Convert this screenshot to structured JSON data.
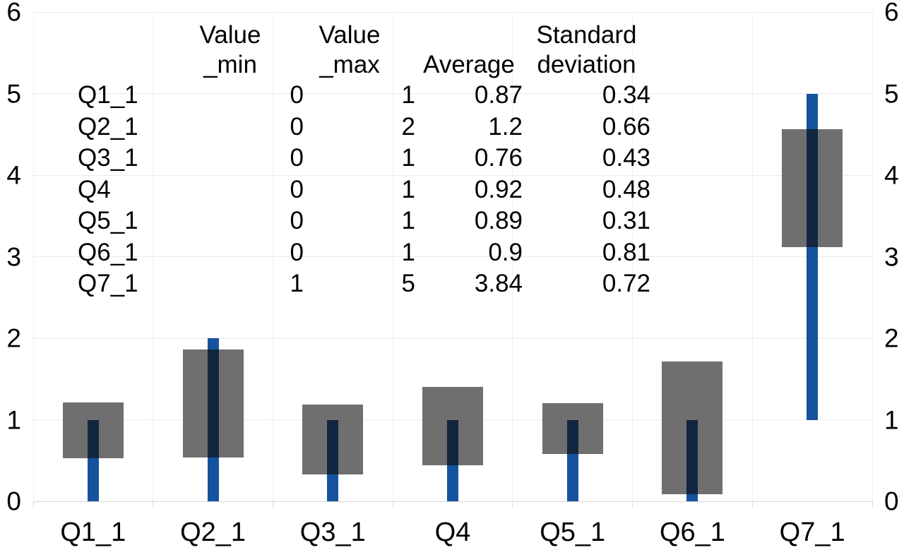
{
  "chart_data": {
    "type": "bar",
    "subtype": "min-max range bars with average±standard-deviation band bars",
    "title": "",
    "xlabel": "",
    "ylabel": "",
    "categories": [
      "Q1_1",
      "Q2_1",
      "Q3_1",
      "Q4",
      "Q5_1",
      "Q6_1",
      "Q7_1"
    ],
    "series": [
      {
        "name": "Value_min",
        "values": [
          0,
          0,
          0,
          0,
          0,
          0,
          1
        ]
      },
      {
        "name": "Value_max",
        "values": [
          1,
          2,
          1,
          1,
          1,
          1,
          5
        ]
      },
      {
        "name": "Average",
        "values": [
          0.87,
          1.2,
          0.76,
          0.92,
          0.89,
          0.9,
          3.84
        ]
      },
      {
        "name": "Standard deviation",
        "values": [
          0.34,
          0.66,
          0.43,
          0.48,
          0.31,
          0.81,
          0.72
        ]
      }
    ],
    "ylim": [
      0,
      6
    ],
    "y_ticks": [
      0,
      1,
      2,
      3,
      4,
      5,
      6
    ],
    "axes": {
      "left_labels": true,
      "right_labels": true
    },
    "grid": true,
    "legend": "none",
    "colors": {
      "range_bar_blue": "#16539E",
      "band_bar_gray": "#6F6F6F",
      "overlap_dark": "#13263F",
      "gridline": "#EAEAEA",
      "axis_line": "#D6D6D6",
      "text": "#000000",
      "background": "#FFFFFF"
    }
  },
  "table": {
    "headers": [
      {
        "line1": "",
        "line2": ""
      },
      {
        "line1": "Value",
        "line2": "_min"
      },
      {
        "line1": "Value",
        "line2": "_max"
      },
      {
        "line1": "",
        "line2": "Average"
      },
      {
        "line1": "Standard",
        "line2": "deviation"
      }
    ],
    "rows": [
      {
        "label": "Q1_1",
        "min": "0",
        "max": "1",
        "avg": "0.87",
        "std": "0.34"
      },
      {
        "label": "Q2_1",
        "min": "0",
        "max": "2",
        "avg": "1.2",
        "std": "0.66"
      },
      {
        "label": "Q3_1",
        "min": "0",
        "max": "1",
        "avg": "0.76",
        "std": "0.43"
      },
      {
        "label": "Q4",
        "min": "0",
        "max": "1",
        "avg": "0.92",
        "std": "0.48"
      },
      {
        "label": "Q5_1",
        "min": "0",
        "max": "1",
        "avg": "0.89",
        "std": "0.31"
      },
      {
        "label": "Q6_1",
        "min": "0",
        "max": "1",
        "avg": "0.9",
        "std": "0.81"
      },
      {
        "label": "Q7_1",
        "min": "1",
        "max": "5",
        "avg": "3.84",
        "std": "0.72"
      }
    ]
  }
}
